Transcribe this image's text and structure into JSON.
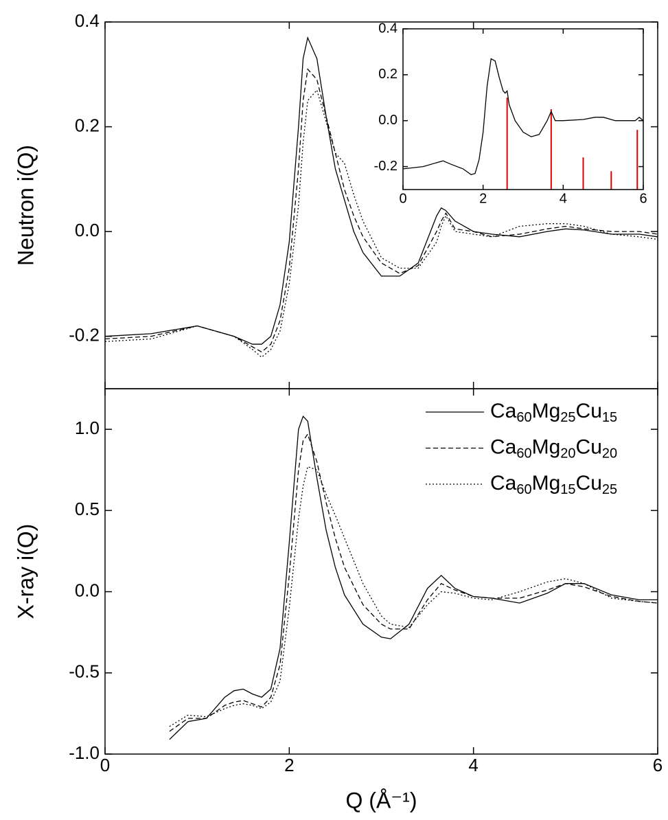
{
  "chart_data": [
    {
      "type": "line",
      "ylabel": "Neutron i(Q)",
      "xlim": [
        0,
        6
      ],
      "ylim": [
        -0.3,
        0.4
      ],
      "yticks": [
        -0.2,
        {
          "value": 0,
          "label": "0.0"
        },
        0.2,
        0.4
      ],
      "x": [
        0,
        0.5,
        1.0,
        1.4,
        1.6,
        1.7,
        1.8,
        1.9,
        2.0,
        2.1,
        2.15,
        2.2,
        2.3,
        2.4,
        2.5,
        2.6,
        2.7,
        2.8,
        3.0,
        3.2,
        3.4,
        3.6,
        3.65,
        3.7,
        3.8,
        4.0,
        4.2,
        4.5,
        4.8,
        5.0,
        5.2,
        5.5,
        5.8,
        6.0
      ],
      "series": [
        {
          "color": "#000000",
          "dash": "solid",
          "values": [
            -0.2,
            -0.195,
            -0.18,
            -0.2,
            -0.215,
            -0.215,
            -0.2,
            -0.14,
            -0.02,
            0.2,
            0.33,
            0.37,
            0.33,
            0.22,
            0.12,
            0.06,
            0.0,
            -0.04,
            -0.085,
            -0.085,
            -0.06,
            0.03,
            0.045,
            0.04,
            0.02,
            0.0,
            -0.005,
            -0.01,
            0.0,
            0.005,
            0.003,
            -0.005,
            -0.005,
            -0.01
          ]
        },
        {
          "color": "#000000",
          "dash": "dashed",
          "values": [
            -0.205,
            -0.2,
            -0.18,
            -0.2,
            -0.22,
            -0.23,
            -0.215,
            -0.17,
            -0.07,
            0.12,
            0.25,
            0.31,
            0.29,
            0.22,
            0.15,
            0.08,
            0.03,
            -0.01,
            -0.06,
            -0.08,
            -0.065,
            0.0,
            0.02,
            0.035,
            0.005,
            0.0,
            -0.01,
            -0.005,
            0.005,
            0.01,
            0.005,
            0.0,
            0.0,
            -0.005
          ]
        },
        {
          "color": "#000000",
          "dash": "dotted",
          "values": [
            -0.21,
            -0.205,
            -0.18,
            -0.2,
            -0.225,
            -0.24,
            -0.225,
            -0.19,
            -0.1,
            0.05,
            0.17,
            0.25,
            0.27,
            0.21,
            0.15,
            0.13,
            0.07,
            0.02,
            -0.05,
            -0.07,
            -0.07,
            -0.02,
            0.01,
            0.03,
            0.0,
            -0.005,
            -0.01,
            0.01,
            0.015,
            0.015,
            0.01,
            -0.005,
            -0.01,
            -0.015
          ]
        }
      ]
    },
    {
      "type": "line",
      "ylabel": "X-ray i(Q)",
      "xlabel": "Q (Å⁻¹)",
      "xlim": [
        0,
        6
      ],
      "ylim": [
        -1.0,
        1.25
      ],
      "xticks": [
        0,
        2,
        4,
        6
      ],
      "yticks": [
        {
          "value": -1,
          "label": "-1.0"
        },
        -0.5,
        {
          "value": 0,
          "label": "0.0"
        },
        0.5,
        {
          "value": 1,
          "label": "1.0"
        }
      ],
      "legend": "upper right",
      "x": [
        0.7,
        0.9,
        1.1,
        1.3,
        1.4,
        1.5,
        1.6,
        1.7,
        1.8,
        1.9,
        2.0,
        2.1,
        2.15,
        2.2,
        2.3,
        2.4,
        2.5,
        2.6,
        2.8,
        3.0,
        3.1,
        3.3,
        3.5,
        3.65,
        3.8,
        4.0,
        4.2,
        4.5,
        4.8,
        5.0,
        5.2,
        5.5,
        5.8,
        6.0
      ],
      "series": [
        {
          "name": "Ca60Mg25Cu15",
          "color": "#000000",
          "dash": "solid",
          "values": [
            -0.91,
            -0.8,
            -0.78,
            -0.65,
            -0.61,
            -0.6,
            -0.63,
            -0.65,
            -0.6,
            -0.35,
            0.3,
            1.0,
            1.08,
            1.05,
            0.7,
            0.38,
            0.15,
            -0.02,
            -0.2,
            -0.28,
            -0.29,
            -0.2,
            0.02,
            0.1,
            0.02,
            -0.03,
            -0.04,
            -0.07,
            -0.01,
            0.05,
            0.05,
            -0.02,
            -0.05,
            -0.05
          ]
        },
        {
          "name": "Ca60Mg20Cu20",
          "color": "#000000",
          "dash": "dashed",
          "values": [
            -0.86,
            -0.78,
            -0.78,
            -0.7,
            -0.68,
            -0.67,
            -0.69,
            -0.71,
            -0.65,
            -0.45,
            0.1,
            0.75,
            0.93,
            0.97,
            0.8,
            0.55,
            0.33,
            0.15,
            -0.08,
            -0.2,
            -0.23,
            -0.23,
            -0.05,
            0.05,
            0.01,
            -0.03,
            -0.04,
            -0.04,
            0.01,
            0.05,
            0.03,
            -0.03,
            -0.06,
            -0.07
          ]
        },
        {
          "name": "Ca60Mg15Cu25",
          "color": "#000000",
          "dash": "dotted",
          "values": [
            -0.83,
            -0.76,
            -0.77,
            -0.72,
            -0.7,
            -0.69,
            -0.7,
            -0.72,
            -0.68,
            -0.55,
            -0.1,
            0.45,
            0.65,
            0.77,
            0.75,
            0.6,
            0.47,
            0.33,
            0.05,
            -0.15,
            -0.2,
            -0.22,
            -0.08,
            0.0,
            -0.01,
            -0.04,
            -0.05,
            0.0,
            0.06,
            0.08,
            0.05,
            -0.04,
            -0.06,
            -0.07
          ]
        }
      ]
    },
    {
      "type": "line",
      "xlim": [
        0,
        6
      ],
      "ylim": [
        -0.3,
        0.4
      ],
      "xticks": [
        0,
        2,
        4,
        6
      ],
      "yticks": [
        -0.2,
        {
          "value": 0,
          "label": "0.0"
        },
        0.2,
        0.4
      ],
      "x": [
        0,
        0.5,
        1.0,
        1.2,
        1.5,
        1.7,
        1.8,
        1.9,
        2.0,
        2.1,
        2.2,
        2.3,
        2.4,
        2.5,
        2.55,
        2.6,
        2.65,
        2.8,
        3.0,
        3.2,
        3.4,
        3.6,
        3.7,
        3.8,
        4.0,
        4.5,
        4.8,
        5.0,
        5.3,
        5.8,
        5.9,
        6.0
      ],
      "series": [
        {
          "color": "#000000",
          "dash": "solid",
          "values": [
            -0.21,
            -0.2,
            -0.175,
            -0.19,
            -0.21,
            -0.235,
            -0.23,
            -0.17,
            -0.05,
            0.15,
            0.27,
            0.26,
            0.19,
            0.13,
            0.12,
            0.13,
            0.07,
            0.0,
            -0.05,
            -0.07,
            -0.06,
            0.0,
            0.04,
            0.0,
            0.0,
            0.005,
            0.015,
            0.015,
            0.0,
            0.0,
            0.015,
            0.0
          ]
        }
      ],
      "sticks": {
        "color": "#e00000",
        "x": [
          2.6,
          3.7,
          4.5,
          5.2,
          5.85
        ],
        "values": [
          0.1,
          0.05,
          -0.16,
          -0.22,
          -0.04
        ]
      }
    }
  ]
}
